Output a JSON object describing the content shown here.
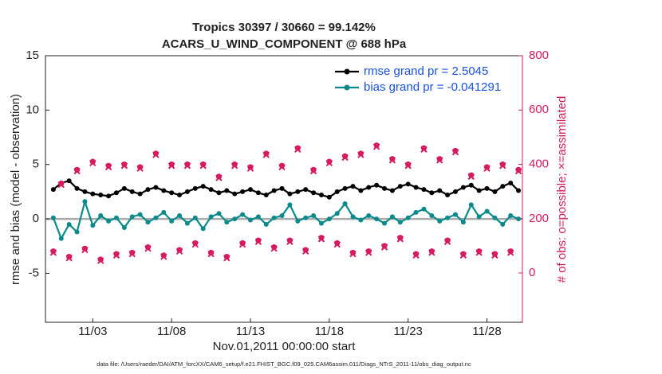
{
  "chart_data": {
    "type": "line",
    "title": "Tropics 30397 / 30660 = 99.142%",
    "subtitle": "ACARS_U_WIND_COMPONENT @ 688 hPa",
    "x_label": "Nov.01,2011 00:00:00 start",
    "y_label": "rmse and bias (model - observation)",
    "y2_label": "# of obs: o=possible; ×=assimilated",
    "footnote": "data file: /Users/raeder/DAI/ATM_forcXX/CAM6_setup/f.e21.FHIST_BGC.f09_025.CAM6assim.011/Diags_NTrS_2011-11/obs_diag_output.nc",
    "legend": "top-right",
    "grid": false,
    "xlim": [
      0,
      30.25
    ],
    "xticks": [
      {
        "value": 3,
        "label": "11/03"
      },
      {
        "value": 8,
        "label": "11/08"
      },
      {
        "value": 13,
        "label": "11/13"
      },
      {
        "value": 18,
        "label": "11/18"
      },
      {
        "value": 23,
        "label": "11/23"
      },
      {
        "value": 28,
        "label": "11/28"
      }
    ],
    "ylim": [
      -9.5,
      15
    ],
    "yticks": [
      -5,
      0,
      5,
      10,
      15
    ],
    "y2lim": [
      -181.5,
      800
    ],
    "y2ticks": [
      0,
      200,
      400,
      600,
      800
    ],
    "x": [
      0.5,
      1,
      1.5,
      2,
      2.5,
      3,
      3.5,
      4,
      4.5,
      5,
      5.5,
      6,
      6.5,
      7,
      7.5,
      8,
      8.5,
      9,
      9.5,
      10,
      10.5,
      11,
      11.5,
      12,
      12.5,
      13,
      13.5,
      14,
      14.5,
      15,
      15.5,
      16,
      16.5,
      17,
      17.5,
      18,
      18.5,
      19,
      19.5,
      20,
      20.5,
      21,
      21.5,
      22,
      22.5,
      23,
      23.5,
      24,
      24.5,
      25,
      25.5,
      26,
      26.5,
      27,
      27.5,
      28,
      28.5,
      29,
      29.5,
      30
    ],
    "series": [
      {
        "name": "rmse grand pr = 2.5045",
        "color": "#000000",
        "marker": "circle",
        "line": true,
        "legend": true,
        "values": [
          2.7,
          3.3,
          3.5,
          2.8,
          2.5,
          2.3,
          2.2,
          2.1,
          2.4,
          2.8,
          2.5,
          2.3,
          2.7,
          2.9,
          2.6,
          2.4,
          2.2,
          2.5,
          2.8,
          3.0,
          2.7,
          2.4,
          2.6,
          2.3,
          2.5,
          2.7,
          2.4,
          2.2,
          2.6,
          2.8,
          2.3,
          2.5,
          2.7,
          2.4,
          2.2,
          2.0,
          2.5,
          2.8,
          3.0,
          2.6,
          2.9,
          3.1,
          2.8,
          2.6,
          3.0,
          3.2,
          2.9,
          2.7,
          2.4,
          2.6,
          2.2,
          2.5,
          2.9,
          3.1,
          2.6,
          2.8,
          2.5,
          3.0,
          3.3,
          2.6
        ]
      },
      {
        "name": "bias grand pr = -0.041291",
        "color": "#0a8a8a",
        "marker": "circle",
        "line": true,
        "legend": true,
        "values": [
          0.1,
          -1.8,
          -0.5,
          -1.2,
          1.6,
          -0.6,
          0.3,
          -0.2,
          0.1,
          -0.8,
          0.2,
          0.4,
          -0.3,
          0.1,
          0.6,
          -0.2,
          0.3,
          -0.4,
          0.1,
          -0.9,
          0.2,
          0.5,
          -0.3,
          0.0,
          0.4,
          -0.1,
          0.2,
          -0.5,
          0.1,
          0.3,
          1.3,
          -0.2,
          0.1,
          0.3,
          -0.4,
          0.0,
          0.5,
          1.4,
          0.2,
          -0.1,
          0.3,
          0.0,
          -0.4,
          0.2,
          -0.3,
          0.1,
          0.6,
          0.9,
          0.3,
          -0.2,
          0.1,
          0.4,
          -0.3,
          1.3,
          0.2,
          0.7,
          0.1,
          -0.5,
          0.3,
          0.0
        ]
      },
      {
        "name": "possible",
        "color": "#d81b60",
        "marker": "circle",
        "line": false,
        "legend": false,
        "axis": "y2",
        "values": [
          80,
          330,
          60,
          380,
          90,
          410,
          50,
          395,
          70,
          400,
          75,
          390,
          95,
          440,
          65,
          400,
          85,
          400,
          110,
          400,
          75,
          355,
          60,
          400,
          110,
          390,
          120,
          440,
          95,
          395,
          120,
          460,
          85,
          380,
          130,
          410,
          110,
          430,
          75,
          440,
          80,
          470,
          100,
          420,
          130,
          400,
          70,
          460,
          80,
          420,
          120,
          450,
          70,
          360,
          80,
          390,
          70,
          400,
          80,
          380
        ]
      },
      {
        "name": "assimilated",
        "color": "#d81b60",
        "marker": "x",
        "line": false,
        "legend": false,
        "axis": "y2",
        "values": [
          75,
          325,
          55,
          375,
          85,
          405,
          45,
          390,
          65,
          395,
          70,
          385,
          90,
          435,
          60,
          395,
          80,
          395,
          105,
          395,
          70,
          350,
          55,
          395,
          105,
          385,
          115,
          435,
          90,
          390,
          115,
          455,
          80,
          375,
          125,
          405,
          105,
          425,
          70,
          435,
          75,
          465,
          95,
          415,
          125,
          395,
          65,
          455,
          75,
          415,
          115,
          445,
          65,
          355,
          75,
          385,
          65,
          395,
          75,
          375
        ]
      }
    ]
  }
}
